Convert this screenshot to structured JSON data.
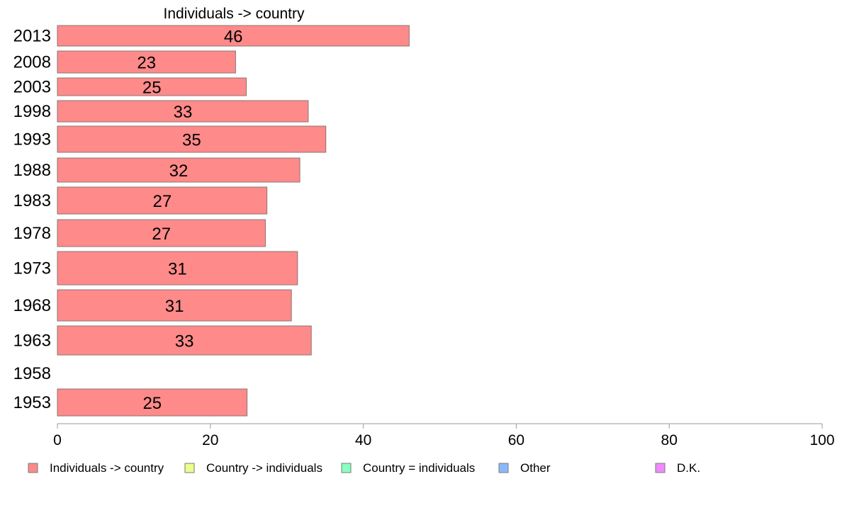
{
  "chart_data": {
    "type": "bar",
    "orientation": "horizontal",
    "title": "Individuals -> country",
    "xlabel": "",
    "ylabel": "",
    "xlim": [
      0,
      100
    ],
    "x_ticks": [
      "0",
      "20",
      "40",
      "60",
      "80",
      "100"
    ],
    "grid": false,
    "categories": [
      "2013",
      "2008",
      "2003",
      "1998",
      "1993",
      "1988",
      "1983",
      "1978",
      "1973",
      "1968",
      "1963",
      "1958",
      "1953"
    ],
    "series": [
      {
        "name": "Individuals -> country",
        "color": "#ff8a8a",
        "values": [
          46,
          23.3,
          24.7,
          32.8,
          35.1,
          31.7,
          27.4,
          27.2,
          31.4,
          30.6,
          33.2,
          null,
          24.8
        ],
        "labels": [
          "46",
          "23",
          "25",
          "33",
          "35",
          "32",
          "27",
          "27",
          "31",
          "31",
          "33",
          "",
          "25"
        ]
      }
    ],
    "legend": {
      "placement": "bottom",
      "items": [
        {
          "label": "Individuals -> country",
          "color": "#ff8a8a"
        },
        {
          "label": "Country -> individuals",
          "color": "#eaff8a"
        },
        {
          "label": "Country = individuals",
          "color": "#8affc0"
        },
        {
          "label": "Other",
          "color": "#8ab8ff"
        },
        {
          "label": "D.K.",
          "color": "#f08aff"
        }
      ]
    }
  }
}
